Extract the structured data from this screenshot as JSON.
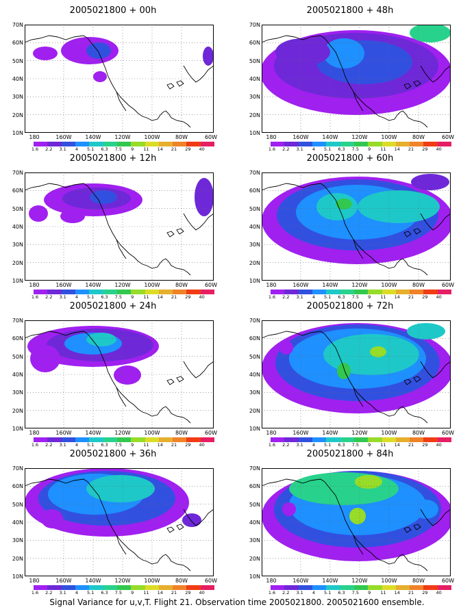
{
  "map": {
    "lat_ticks": [
      "70N",
      "60N",
      "50N",
      "40N",
      "30N",
      "20N",
      "10N"
    ],
    "lon_ticks": [
      "180",
      "160W",
      "140W",
      "120W",
      "100W",
      "80W",
      "60W"
    ]
  },
  "colorbar": {
    "colors": [
      "#a020f0",
      "#6e28d8",
      "#3250e0",
      "#1e90ff",
      "#1ec8c8",
      "#28d28c",
      "#32c850",
      "#96dc28",
      "#dcdc28",
      "#e6af2d",
      "#f08228",
      "#f03c14",
      "#e61e64"
    ],
    "labels": [
      "1.6",
      "2.2",
      "3.1",
      "4",
      "5.1",
      "6.3",
      "7.5",
      "9",
      "11",
      "14",
      "21",
      "29",
      "40"
    ]
  },
  "panels": [
    {
      "title": "2005021800 + 00h"
    },
    {
      "title": "2005021800 + 48h"
    },
    {
      "title": "2005021800 + 12h"
    },
    {
      "title": "2005021800 + 60h"
    },
    {
      "title": "2005021800 + 24h"
    },
    {
      "title": "2005021800 + 72h"
    },
    {
      "title": "2005021800 + 36h"
    },
    {
      "title": "2005021800 + 84h"
    }
  ],
  "caption": "Signal Variance for u,v,T. Flight 21. Observation time 2005021800. 2005021600 ensemble."
}
